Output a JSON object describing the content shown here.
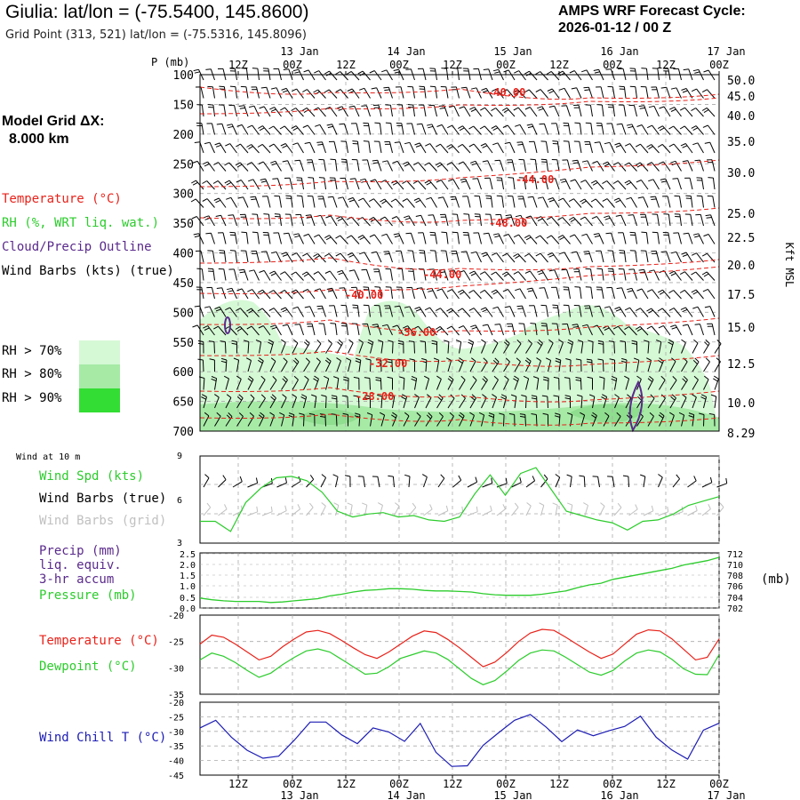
{
  "header": {
    "title": "Giulia:  lat/lon = (-75.5400, 145.8600)",
    "subtitle": "Grid Point (313, 521) lat/lon = (-75.5316, 145.8096)",
    "forecast_line1": "AMPS WRF Forecast Cycle:",
    "forecast_line2": "2026-01-12 / 00  Z",
    "grid_line1": "Model Grid ΔX:",
    "grid_line2": "8.000 km"
  },
  "legend": {
    "temperature": "Temperature (°C)",
    "rh": "RH (%, WRT liq. wat.)",
    "cloud": "Cloud/Precip Outline",
    "barbs": "Wind Barbs (kts) (true)",
    "rh70": "RH > 70%",
    "rh80": "RH > 80%",
    "rh90": "RH > 90%"
  },
  "colors": {
    "temperature": "#e8221a",
    "rh70": "#d5f8d5",
    "rh80": "#a6eaa6",
    "rh90": "#33dd33",
    "green_line": "#2ccc2c",
    "cloud": "#5a2a8c",
    "windchill": "#1c1cb4",
    "grid_gray": "#aaaaaa",
    "barb_gray": "#c0c0c0"
  },
  "chart_data": [
    {
      "type": "cross-section",
      "axes_titles": {
        "y_left": "P (mb)",
        "y_right": "Kft MSL"
      },
      "time_ticks_top": [
        "12Z",
        "00Z",
        "12Z",
        "00Z",
        "12Z",
        "00Z",
        "12Z",
        "00Z",
        "12Z",
        "00Z"
      ],
      "date_labels_top": [
        "13 Jan",
        "14 Jan",
        "15 Jan",
        "16 Jan",
        "17 Jan"
      ],
      "pressure_ticks": [
        100,
        150,
        200,
        250,
        300,
        350,
        400,
        450,
        500,
        550,
        600,
        650,
        700
      ],
      "height_ticks_kft": [
        "50.0",
        "45.0",
        "40.0",
        "35.0",
        "30.0",
        "25.0",
        "22.5",
        "20.0",
        "17.5",
        "15.0",
        "12.5",
        "10.0",
        "8.29"
      ],
      "contour_labels": [
        "-40.00",
        "-44.00",
        "-48.00",
        "-44.00",
        "-40.00",
        "-36.00",
        "-32.00",
        "-28.00"
      ]
    },
    {
      "type": "line",
      "header": "Wind at 10 m",
      "labels": {
        "speed": "Wind Spd (kts)",
        "barbs_true": "Wind Barbs (true)",
        "barbs_grid": "Wind Barbs (grid)"
      },
      "y_ticks": [
        "9",
        "6",
        "3"
      ],
      "ylim": [
        3,
        9
      ],
      "x_hours": [
        0,
        6,
        12,
        18,
        24,
        30,
        36,
        42,
        48,
        54,
        60,
        66,
        72,
        78,
        84,
        90,
        96,
        102,
        108,
        114,
        120,
        126,
        132,
        138,
        144,
        150,
        156,
        162,
        168,
        174,
        180,
        186,
        192,
        198,
        204
      ],
      "series": [
        {
          "name": "Wind Spd (kts)",
          "values": [
            4.5,
            4.5,
            3.8,
            5.8,
            6.8,
            7.5,
            7.6,
            7.3,
            6.5,
            5.2,
            4.8,
            5.0,
            5.1,
            4.8,
            4.9,
            4.6,
            4.5,
            4.8,
            6.4,
            7.7,
            6.3,
            7.8,
            8.2,
            6.7,
            5.2,
            4.9,
            4.6,
            4.4,
            3.9,
            4.5,
            4.6,
            5.0,
            5.6,
            5.9,
            6.2
          ]
        }
      ]
    },
    {
      "type": "line",
      "labels": {
        "precip": "Precip (mm)",
        "liq1": "liq. equiv.",
        "liq2": "3-hr accum",
        "pressure": "Pressure (mb)",
        "unit": "(mb)"
      },
      "y_ticks_left": [
        "2.5",
        "2.0",
        "1.5",
        "1.0",
        "0.5",
        "0.0"
      ],
      "y_ticks_right": [
        "712",
        "710",
        "708",
        "706",
        "704",
        "702"
      ],
      "ylim_right": [
        702,
        712
      ],
      "series": [
        {
          "name": "Pressure (mb)",
          "values": [
            703.8,
            703.5,
            703.3,
            703.2,
            703.2,
            703.2,
            703.0,
            703.1,
            703.3,
            703.5,
            703.7,
            704.2,
            704.5,
            704.9,
            705.2,
            705.3,
            705.5,
            705.5,
            705.4,
            705.2,
            705.1,
            705.1,
            705.0,
            704.9,
            704.6,
            704.4,
            704.3,
            704.3,
            704.3,
            704.5,
            704.8,
            705.1,
            705.7,
            706.2,
            706.5,
            707.2,
            707.6,
            708.0,
            708.4,
            708.8,
            709.2,
            709.8,
            710.2,
            710.6,
            711.2
          ]
        }
      ]
    },
    {
      "type": "line",
      "labels": {
        "temperature": "Temperature (°C)",
        "dewpoint": "Dewpoint (°C)"
      },
      "y_ticks": [
        "-20",
        "-25",
        "-30",
        "-35"
      ],
      "ylim": [
        -35,
        -20
      ],
      "series": [
        {
          "name": "Temperature (°C)",
          "values": [
            -25.5,
            -23.8,
            -24.2,
            -25.5,
            -27.0,
            -28.5,
            -27.8,
            -26.0,
            -24.5,
            -23.2,
            -22.9,
            -23.5,
            -24.8,
            -26.2,
            -27.5,
            -28.2,
            -27.0,
            -25.5,
            -24.0,
            -23.0,
            -23.3,
            -24.6,
            -26.2,
            -28.0,
            -29.8,
            -28.9,
            -27.1,
            -25.0,
            -23.4,
            -22.7,
            -22.9,
            -24.2,
            -25.6,
            -27.0,
            -28.2,
            -27.4,
            -25.5,
            -23.6,
            -22.8,
            -23.0,
            -24.5,
            -26.5,
            -28.5,
            -28.0,
            -24.5
          ]
        },
        {
          "name": "Dewpoint (°C)",
          "values": [
            -28.5,
            -27.2,
            -27.8,
            -29.0,
            -30.5,
            -31.8,
            -31.0,
            -29.4,
            -28.0,
            -26.8,
            -26.4,
            -27.0,
            -28.4,
            -29.8,
            -31.2,
            -31.0,
            -29.8,
            -28.2,
            -27.5,
            -26.8,
            -27.2,
            -28.4,
            -30.2,
            -32.0,
            -33.2,
            -32.4,
            -30.6,
            -28.6,
            -27.2,
            -26.6,
            -26.8,
            -28.0,
            -29.4,
            -30.8,
            -31.4,
            -30.5,
            -28.7,
            -27.2,
            -26.6,
            -27.0,
            -28.4,
            -30.2,
            -31.2,
            -31.3,
            -27.5
          ]
        }
      ]
    },
    {
      "type": "line",
      "labels": {
        "windchill": "Wind Chill T (°C)"
      },
      "y_ticks": [
        "-20",
        "-25",
        "-30",
        "-35",
        "-40",
        "-45"
      ],
      "ylim": [
        -45,
        -20
      ],
      "x_ticks_bottom": [
        "12Z",
        "00Z",
        "12Z",
        "00Z",
        "12Z",
        "00Z",
        "12Z",
        "00Z",
        "12Z",
        "00Z"
      ],
      "date_labels_bottom": [
        "13 Jan",
        "14 Jan",
        "15 Jan",
        "16 Jan",
        "17 Jan"
      ],
      "series": [
        {
          "name": "Wind Chill T (°C)",
          "values": [
            -28.8,
            -26.2,
            -32.0,
            -36.5,
            -39.2,
            -38.5,
            -33.0,
            -26.8,
            -26.8,
            -31.2,
            -34.2,
            -28.8,
            -30.2,
            -33.4,
            -27.3,
            -37.2,
            -42.0,
            -41.8,
            -34.8,
            -30.4,
            -26.2,
            -24.2,
            -28.5,
            -33.5,
            -29.5,
            -31.5,
            -29.8,
            -28.3,
            -24.8,
            -32.0,
            -36.4,
            -39.5,
            -29.6,
            -27.2
          ]
        }
      ]
    }
  ]
}
